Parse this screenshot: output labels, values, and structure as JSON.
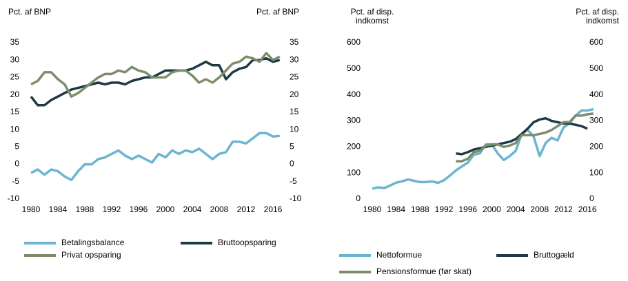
{
  "chart_data": [
    {
      "type": "line",
      "y_label": [
        "Pct. af BNP"
      ],
      "y2_label": [
        "Pct. af BNP"
      ],
      "x": [
        1980,
        1981,
        1982,
        1983,
        1984,
        1985,
        1986,
        1987,
        1988,
        1989,
        1990,
        1991,
        1992,
        1993,
        1994,
        1995,
        1996,
        1997,
        1998,
        1999,
        2000,
        2001,
        2002,
        2003,
        2004,
        2005,
        2006,
        2007,
        2008,
        2009,
        2010,
        2011,
        2012,
        2013,
        2014,
        2015,
        2016,
        2017
      ],
      "xlim": [
        1979,
        2018
      ],
      "xticks": [
        1980,
        1984,
        1988,
        1992,
        1996,
        2000,
        2004,
        2008,
        2012,
        2016
      ],
      "ylim": [
        -10,
        35
      ],
      "yticks": [
        -10,
        -5,
        0,
        5,
        10,
        15,
        20,
        25,
        30,
        35
      ],
      "y2lim": [
        -10,
        35
      ],
      "y2ticks": [
        -10,
        -5,
        0,
        5,
        10,
        15,
        20,
        25,
        30,
        35
      ],
      "series": [
        {
          "name": "Betalingsbalance",
          "color": "#6cb4d0",
          "values": [
            -2.5,
            -1.5,
            -3,
            -1.5,
            -2,
            -3.5,
            -4.5,
            -2,
            0,
            0,
            1.5,
            2,
            3,
            4,
            2.5,
            1.5,
            2.5,
            1.5,
            0.5,
            3,
            2,
            4,
            3,
            4,
            3.5,
            4.5,
            3,
            1.5,
            3,
            3.5,
            6.5,
            6.5,
            6,
            7.5,
            9,
            9,
            8,
            8.2
          ]
        },
        {
          "name": "Bruttoopsparing",
          "color": "#1d3a47",
          "values": [
            19.5,
            17,
            17,
            18.5,
            19.5,
            20.5,
            21.5,
            22,
            22.5,
            23,
            23.5,
            23,
            23.5,
            23.5,
            23,
            24,
            24.5,
            25,
            25,
            26,
            27,
            27,
            27,
            27,
            27.5,
            28.5,
            29.5,
            28.5,
            28.5,
            24.5,
            26.5,
            27.5,
            28,
            30,
            30,
            30.5,
            29.5,
            30
          ]
        },
        {
          "name": "Privat opsparing",
          "color": "#7d8c6a",
          "values": [
            23,
            24,
            26.5,
            26.5,
            24.5,
            23,
            19.5,
            20.5,
            22,
            23.5,
            25,
            26,
            26,
            27,
            26.5,
            28,
            27,
            26.5,
            25,
            25,
            25,
            26.5,
            27,
            27,
            25.5,
            23.5,
            24.5,
            23.5,
            25,
            27,
            29,
            29.5,
            31,
            30.5,
            29.5,
            32,
            30,
            31
          ]
        }
      ]
    },
    {
      "type": "line",
      "y_label": [
        "Pct. af disp.",
        "indkomst"
      ],
      "y2_label": [
        "Pct. af disp.",
        "indkomst"
      ],
      "x": [
        1980,
        1981,
        1982,
        1983,
        1984,
        1985,
        1986,
        1987,
        1988,
        1989,
        1990,
        1991,
        1992,
        1993,
        1994,
        1995,
        1996,
        1997,
        1998,
        1999,
        2000,
        2001,
        2002,
        2003,
        2004,
        2005,
        2006,
        2007,
        2008,
        2009,
        2010,
        2011,
        2012,
        2013,
        2014,
        2015,
        2016,
        2017
      ],
      "xlim": [
        1979,
        2018
      ],
      "xticks": [
        1980,
        1984,
        1988,
        1992,
        1996,
        2000,
        2004,
        2008,
        2012,
        2016
      ],
      "ylim": [
        0,
        600
      ],
      "yticks": [
        0,
        100,
        200,
        300,
        400,
        500,
        600
      ],
      "y2lim": [
        0,
        600
      ],
      "y2ticks": [
        0,
        100,
        200,
        300,
        400,
        500,
        600
      ],
      "series": [
        {
          "name": "Nettoformue",
          "color": "#6cb4d0",
          "values": [
            40,
            45,
            42,
            52,
            63,
            68,
            75,
            70,
            65,
            65,
            68,
            62,
            72,
            90,
            110,
            125,
            140,
            170,
            175,
            210,
            210,
            175,
            150,
            165,
            185,
            250,
            265,
            240,
            165,
            215,
            235,
            225,
            275,
            290,
            320,
            340,
            340,
            345
          ]
        },
        {
          "name": "Bruttogæld",
          "color": "#1d3a47",
          "values": [
            null,
            null,
            null,
            null,
            null,
            null,
            null,
            null,
            null,
            null,
            null,
            null,
            null,
            null,
            175,
            172,
            180,
            190,
            195,
            200,
            205,
            210,
            215,
            220,
            230,
            250,
            270,
            295,
            305,
            310,
            300,
            295,
            290,
            290,
            285,
            280,
            270,
            null
          ]
        },
        {
          "name": "Pensionsformue (før skat)",
          "color": "#7d8c6a",
          "values": [
            null,
            null,
            null,
            null,
            null,
            null,
            null,
            null,
            null,
            null,
            null,
            null,
            null,
            null,
            145,
            145,
            155,
            180,
            185,
            205,
            210,
            210,
            200,
            205,
            215,
            245,
            245,
            245,
            250,
            255,
            265,
            280,
            295,
            295,
            320,
            320,
            325,
            328
          ]
        }
      ]
    }
  ]
}
